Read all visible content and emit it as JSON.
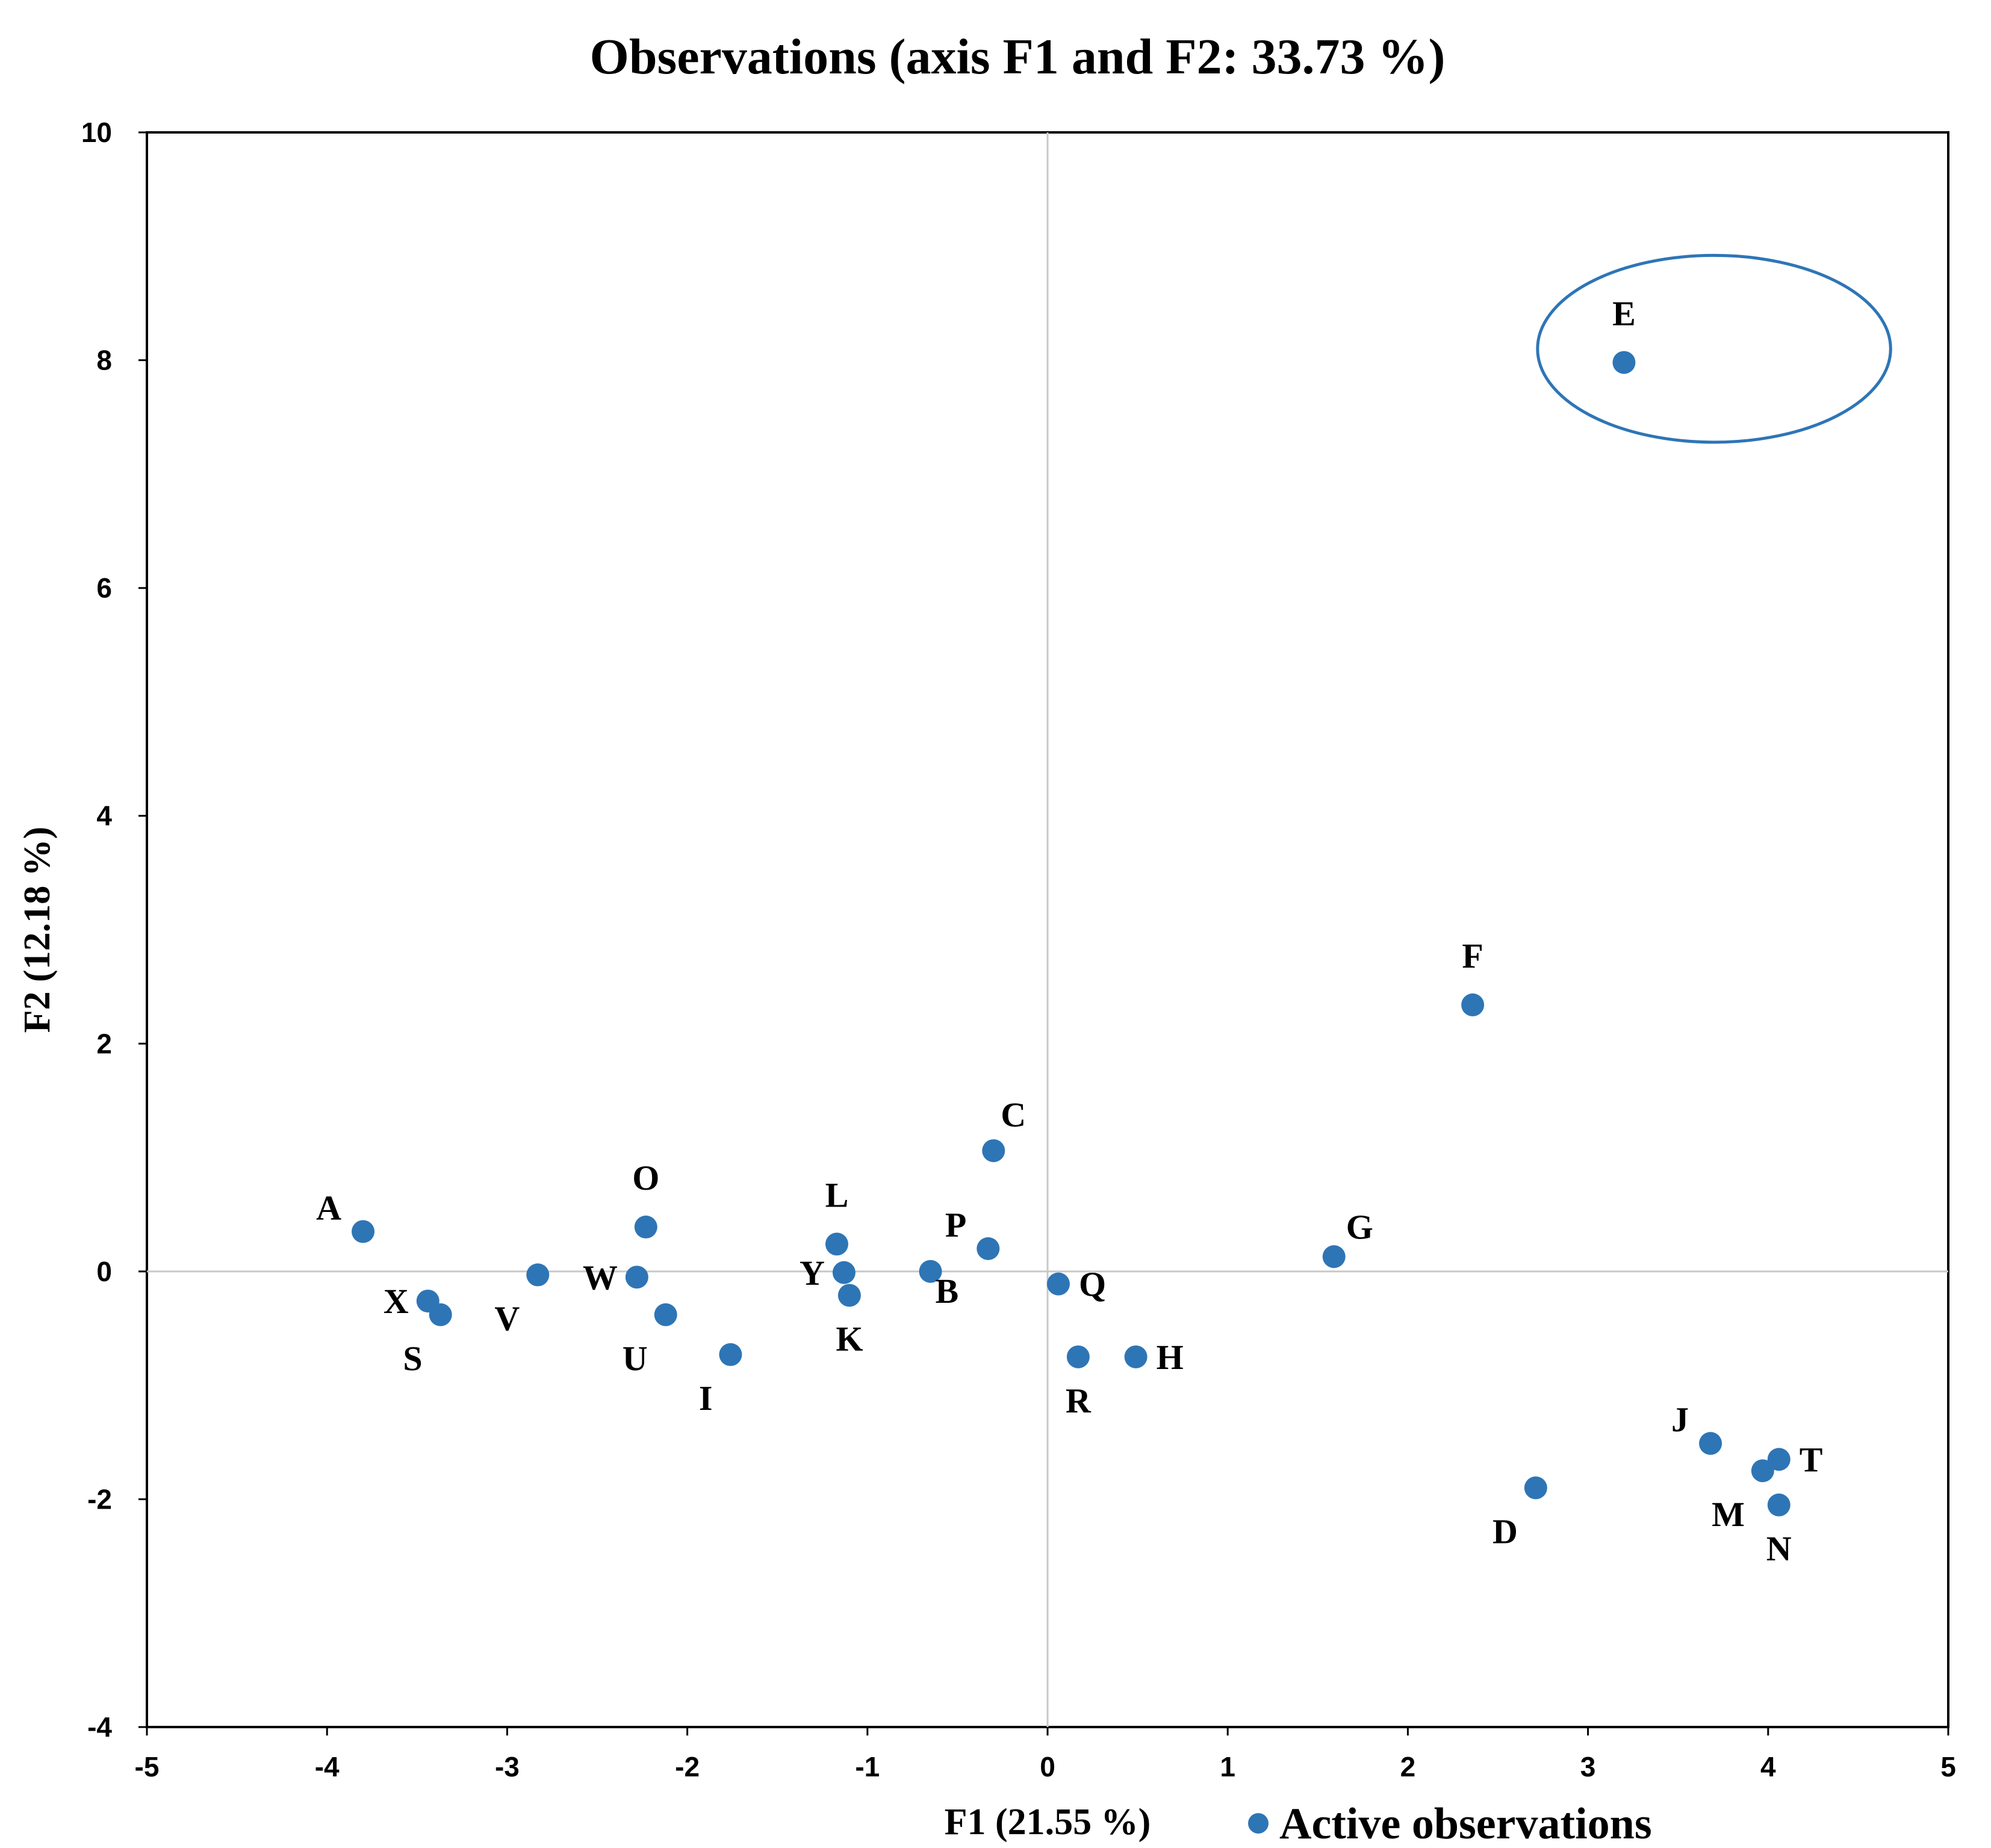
{
  "chart_data": {
    "type": "scatter",
    "title": "Observations (axis F1 and F2: 33.73 %)",
    "xlabel": "F1 (21.55 %)",
    "ylabel": "F2 (12.18 %)",
    "xlim": [
      -5,
      5
    ],
    "ylim": [
      -4,
      10
    ],
    "xticks": [
      -5,
      -4,
      -3,
      -2,
      -1,
      0,
      1,
      2,
      3,
      4,
      5
    ],
    "yticks": [
      -4,
      -2,
      0,
      2,
      4,
      6,
      8,
      10
    ],
    "zero_lines": true,
    "legend": {
      "position": "bottom-right",
      "entries": [
        "Active observations"
      ]
    },
    "series": [
      {
        "name": "Active observations",
        "color": "#2e75b6",
        "points": [
          {
            "label": "A",
            "x": -3.8,
            "y": 0.35,
            "label_pos": "upper-left"
          },
          {
            "label": "X",
            "x": -3.44,
            "y": -0.26,
            "label_pos": "left"
          },
          {
            "label": "S",
            "x": -3.37,
            "y": -0.38,
            "label_pos": "below-left"
          },
          {
            "label": "V",
            "x": -2.83,
            "y": -0.03,
            "label_pos": "below-left"
          },
          {
            "label": "O",
            "x": -2.23,
            "y": 0.39,
            "label_pos": "above"
          },
          {
            "label": "W",
            "x": -2.28,
            "y": -0.05,
            "label_pos": "left"
          },
          {
            "label": "U",
            "x": -2.12,
            "y": -0.38,
            "label_pos": "below-left"
          },
          {
            "label": "I",
            "x": -1.76,
            "y": -0.73,
            "label_pos": "below-left"
          },
          {
            "label": "L",
            "x": -1.17,
            "y": 0.24,
            "label_pos": "above"
          },
          {
            "label": "Y",
            "x": -1.13,
            "y": -0.01,
            "label_pos": "left"
          },
          {
            "label": "K",
            "x": -1.1,
            "y": -0.21,
            "label_pos": "below"
          },
          {
            "label": "B",
            "x": -0.65,
            "y": 0.0,
            "label_pos": "below-right"
          },
          {
            "label": "P",
            "x": -0.33,
            "y": 0.2,
            "label_pos": "upper-left"
          },
          {
            "label": "C",
            "x": -0.3,
            "y": 1.06,
            "label_pos": "above-right"
          },
          {
            "label": "Q",
            "x": 0.06,
            "y": -0.11,
            "label_pos": "right"
          },
          {
            "label": "R",
            "x": 0.17,
            "y": -0.75,
            "label_pos": "below"
          },
          {
            "label": "H",
            "x": 0.49,
            "y": -0.75,
            "label_pos": "right"
          },
          {
            "label": "G",
            "x": 1.59,
            "y": 0.13,
            "label_pos": "upper-right"
          },
          {
            "label": "F",
            "x": 2.36,
            "y": 2.34,
            "label_pos": "above"
          },
          {
            "label": "E",
            "x": 3.2,
            "y": 7.98,
            "label_pos": "above"
          },
          {
            "label": "D",
            "x": 2.71,
            "y": -1.9,
            "label_pos": "below-left"
          },
          {
            "label": "J",
            "x": 3.68,
            "y": -1.51,
            "label_pos": "upper-left"
          },
          {
            "label": "M",
            "x": 3.97,
            "y": -1.75,
            "label_pos": "below-left"
          },
          {
            "label": "T",
            "x": 4.06,
            "y": -1.65,
            "label_pos": "right"
          },
          {
            "label": "N",
            "x": 4.06,
            "y": -2.05,
            "label_pos": "below"
          }
        ]
      }
    ],
    "annotations": [
      {
        "type": "ellipse",
        "highlights": "E",
        "cx": 3.7,
        "cy": 8.1,
        "rx": 0.98,
        "ry": 0.82,
        "color": "#2e75b6"
      }
    ]
  }
}
